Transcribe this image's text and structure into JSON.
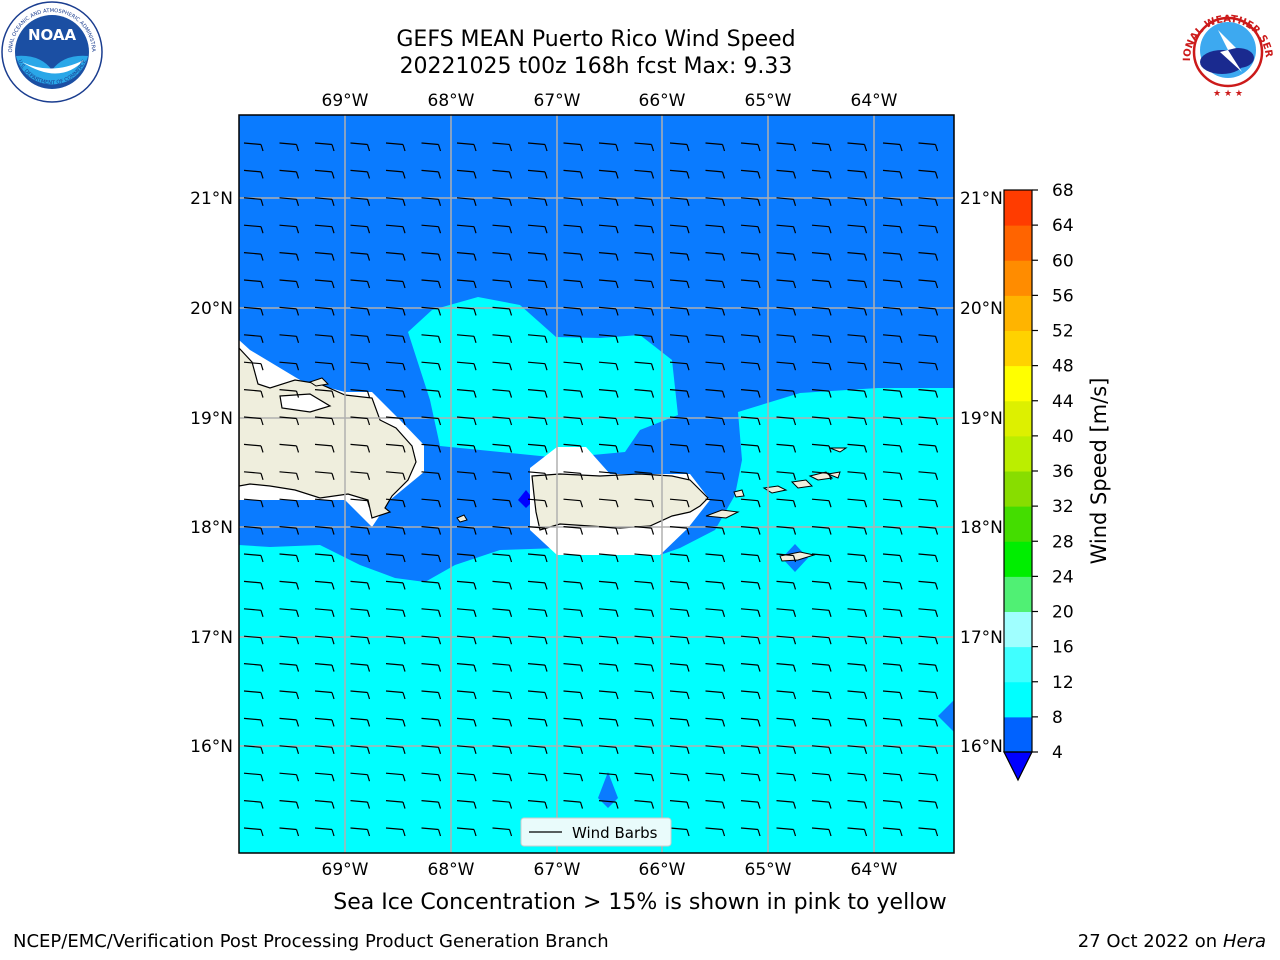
{
  "title": {
    "line1": "GEFS MEAN Puerto Rico Wind Speed",
    "line2": "20221025 t00z 168h fcst   Max: 9.33"
  },
  "longitude_labels": [
    "69°W",
    "68°W",
    "67°W",
    "66°W",
    "65°W",
    "64°W"
  ],
  "latitude_labels": [
    "21°N",
    "20°N",
    "19°N",
    "18°N",
    "17°N",
    "16°N"
  ],
  "colorbar": {
    "label": "Wind Speed [m/s]",
    "ticks": [
      "4",
      "8",
      "12",
      "16",
      "20",
      "24",
      "28",
      "32",
      "36",
      "40",
      "44",
      "48",
      "52",
      "56",
      "60",
      "64",
      "68"
    ],
    "colors": [
      "#0062ff",
      "#00ffff",
      "#40ffff",
      "#a0ffff",
      "#50f074",
      "#00ee00",
      "#44dd00",
      "#88dd00",
      "#bbee00",
      "#ddf000",
      "#ffff00",
      "#ffd200",
      "#ffb400",
      "#ff8c00",
      "#ff6400",
      "#ff3c00",
      "#ff0000"
    ],
    "under_color": "#0000ff"
  },
  "legend": {
    "label": "Wind Barbs"
  },
  "sea_ice_note": "Sea Ice Concentration > 15% is shown in pink to yellow",
  "footer": {
    "left": "NCEP/EMC/Verification Post Processing Product Generation Branch",
    "date": "27 Oct 2022 on ",
    "host": "Hera"
  },
  "logos": {
    "noaa_text": "NOAA",
    "noaa_ring": "NATIONAL OCEANIC AND ATMOSPHERIC ADMINISTRATION",
    "noaa_ring_bottom": "U.S. DEPARTMENT OF COMMERCE",
    "nws_ring": "NATIONAL WEATHER SERVICE"
  },
  "colors": {
    "ocean_light": "#00ffff",
    "ocean_dark": "#0a7bff",
    "land": "#efeedd",
    "grid": "#b0b0b0"
  }
}
